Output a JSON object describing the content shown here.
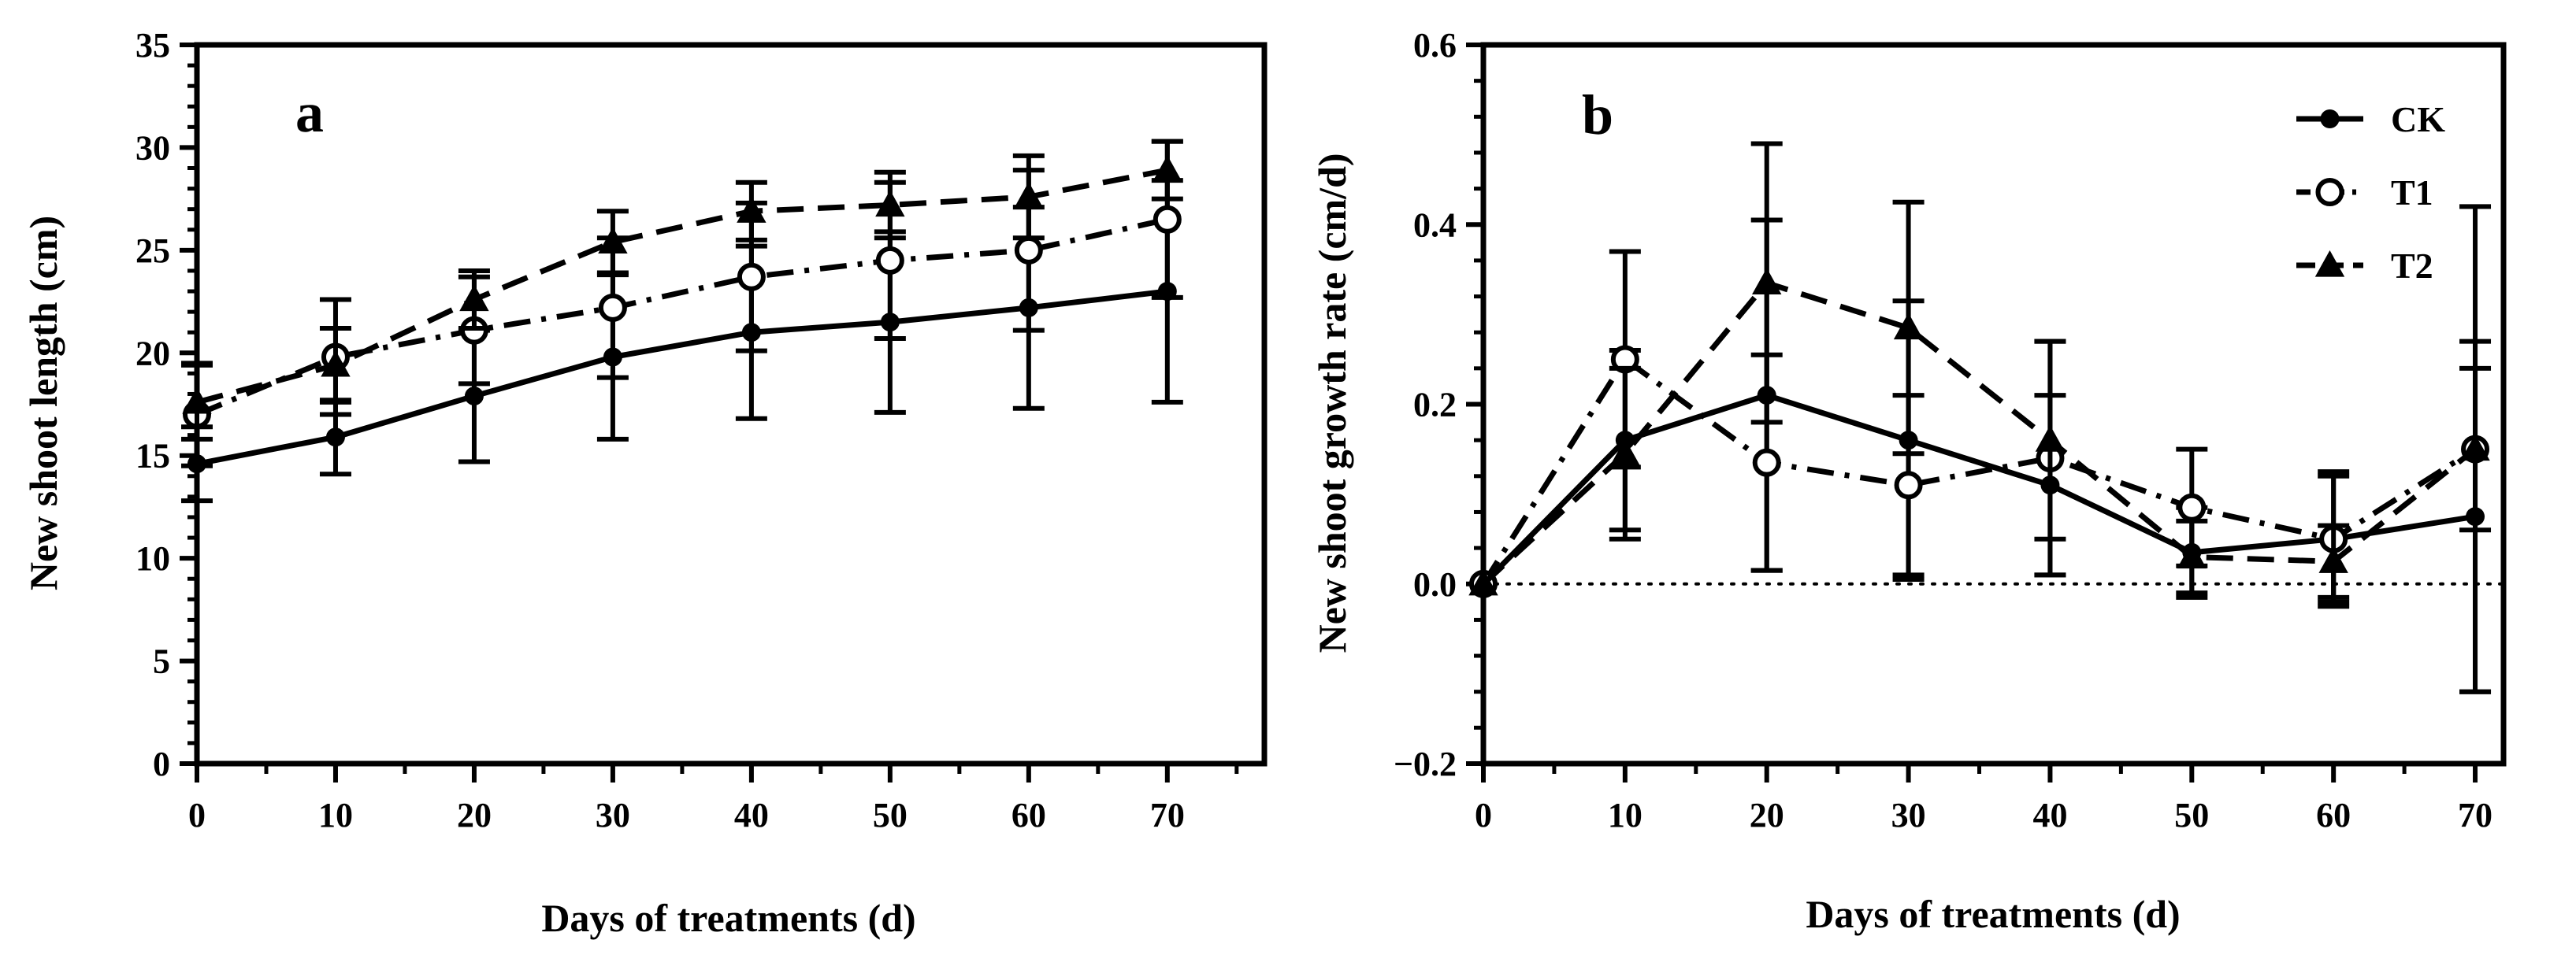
{
  "chart_data": [
    {
      "type": "line",
      "panel_label": "a",
      "xlabel": "Days of treatments (d)",
      "ylabel": "New shoot length (cm)",
      "x": [
        0,
        10,
        20,
        30,
        40,
        50,
        60,
        70
      ],
      "xlim": [
        0,
        77
      ],
      "ylim": [
        0,
        35
      ],
      "xticks": [
        0,
        10,
        20,
        30,
        40,
        50,
        60,
        70
      ],
      "yticks": [
        0,
        5,
        10,
        15,
        20,
        25,
        30,
        35
      ],
      "xtick_labels": [
        "0",
        "10",
        "20",
        "30",
        "40",
        "50",
        "60",
        "70"
      ],
      "ytick_labels": [
        "0",
        "5",
        "10",
        "15",
        "20",
        "25",
        "30",
        "35"
      ],
      "zero_line": false,
      "series": [
        {
          "name": "CK",
          "marker": "filled-circle",
          "dash": "solid",
          "values": [
            14.6,
            15.9,
            17.9,
            19.8,
            21.0,
            21.5,
            22.2,
            23.0
          ],
          "errors": [
            1.8,
            1.8,
            3.2,
            4.0,
            4.2,
            4.4,
            4.9,
            5.4
          ]
        },
        {
          "name": "T1",
          "marker": "open-circle",
          "dash": "dashdot",
          "values": [
            17.0,
            19.8,
            21.1,
            22.2,
            23.7,
            24.5,
            25.0,
            26.5
          ],
          "errors": [
            2.5,
            2.8,
            2.6,
            3.4,
            3.6,
            3.8,
            3.9,
            3.8
          ]
        },
        {
          "name": "T2",
          "marker": "filled-triangle",
          "dash": "dashed",
          "values": [
            17.6,
            19.4,
            22.6,
            25.4,
            26.9,
            27.2,
            27.6,
            28.9
          ],
          "errors": [
            1.8,
            1.8,
            1.4,
            1.5,
            1.4,
            1.6,
            2.0,
            1.4
          ]
        }
      ]
    },
    {
      "type": "line",
      "panel_label": "b",
      "xlabel": "Days of treatments (d)",
      "ylabel": "New shoot growth rate (cm/d)",
      "x": [
        0,
        10,
        20,
        30,
        40,
        50,
        60,
        70
      ],
      "xlim": [
        0,
        72
      ],
      "ylim": [
        -0.2,
        0.6
      ],
      "xticks": [
        0,
        10,
        20,
        30,
        40,
        50,
        60,
        70
      ],
      "yticks": [
        -0.2,
        0.0,
        0.2,
        0.4,
        0.6
      ],
      "xtick_labels": [
        "0",
        "10",
        "20",
        "30",
        "40",
        "50",
        "60",
        "70"
      ],
      "ytick_labels": [
        "−0.2",
        "0.0",
        "0.2",
        "0.4",
        "0.6"
      ],
      "zero_line": true,
      "legend": {
        "position": "top-right",
        "entries": [
          "CK",
          "T1",
          "T2"
        ]
      },
      "series": [
        {
          "name": "CK",
          "marker": "filled-circle",
          "dash": "solid",
          "values": [
            0.0,
            0.16,
            0.21,
            0.16,
            0.11,
            0.035,
            0.05,
            0.075
          ],
          "errors": [
            0.0,
            0.1,
            0.195,
            0.155,
            0.1,
            0.05,
            0.07,
            0.195
          ]
        },
        {
          "name": "T1",
          "marker": "open-circle",
          "dash": "dashdot",
          "values": [
            0.0,
            0.25,
            0.135,
            0.11,
            0.14,
            0.085,
            0.05,
            0.15
          ],
          "errors": [
            0.0,
            0.12,
            0.12,
            0.1,
            0.13,
            0.065,
            0.075,
            0.27
          ]
        },
        {
          "name": "T2",
          "marker": "filled-triangle",
          "dash": "dashed",
          "values": [
            0.0,
            0.145,
            0.335,
            0.285,
            0.16,
            0.03,
            0.025,
            0.15
          ],
          "errors": [
            0.0,
            0.095,
            0.155,
            0.14,
            0.11,
            0.04,
            0.04,
            0.09
          ]
        }
      ]
    }
  ]
}
